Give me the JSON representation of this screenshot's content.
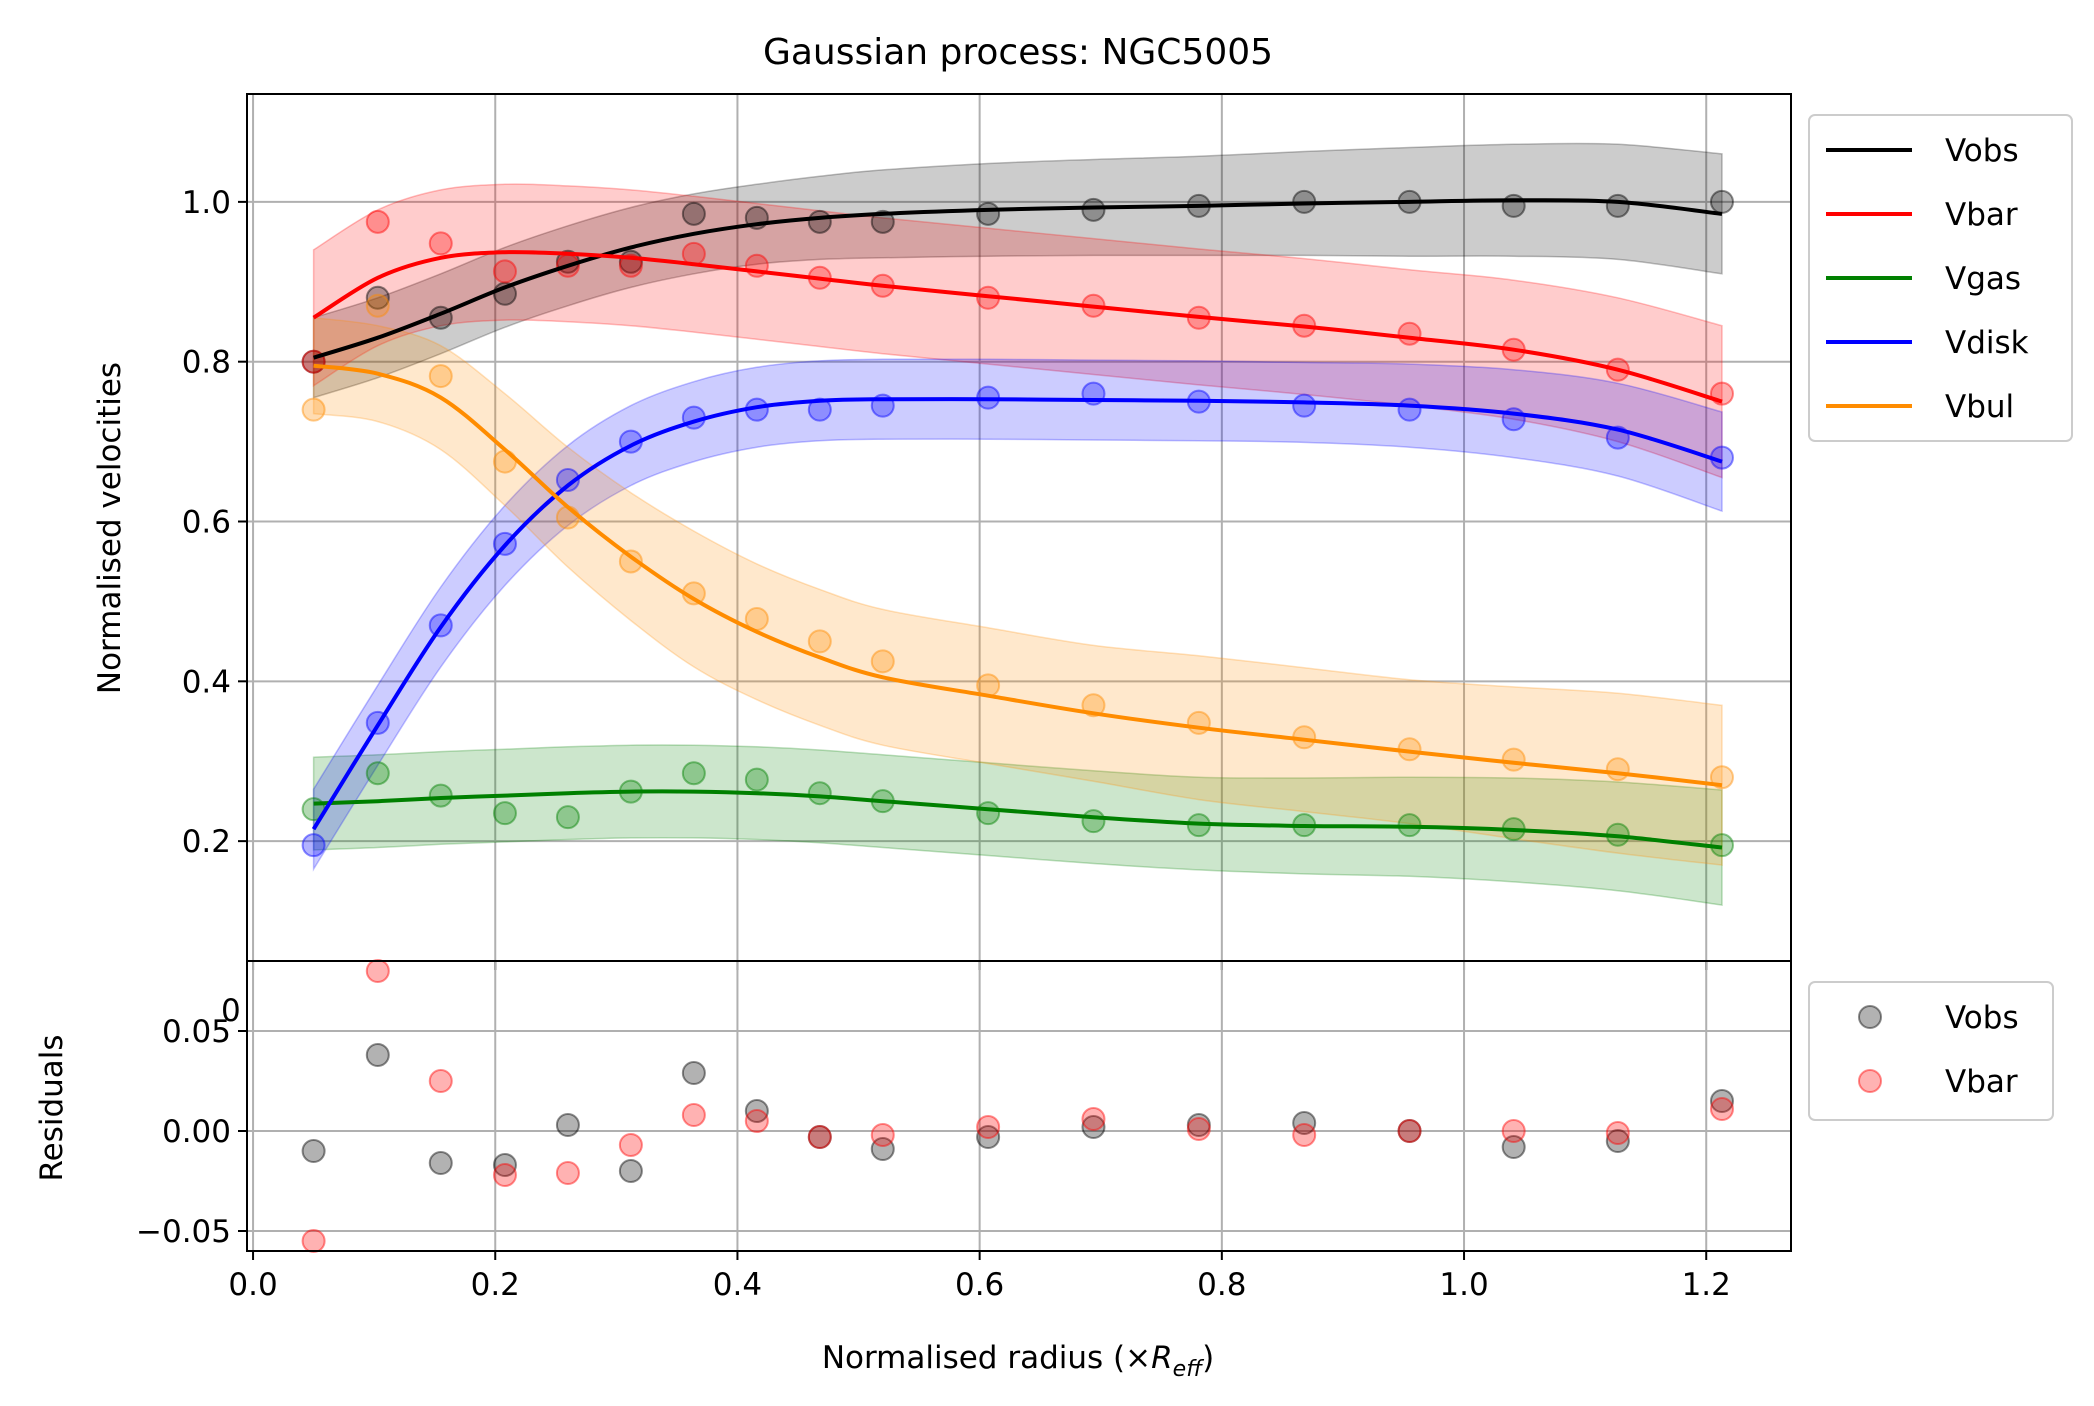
{
  "figure": {
    "title": "Gaussian process: NGC5005"
  },
  "chart_data": [
    {
      "type": "line",
      "panel": "main",
      "title": "Gaussian process: NGC5005",
      "xlabel": "",
      "ylabel": "Normalised velocities",
      "xlim": [
        -0.005,
        1.27
      ],
      "ylim": [
        0.05,
        1.135
      ],
      "y_ticks": [
        "0.2",
        "0.4",
        "0.6",
        "0.8",
        "1.0"
      ],
      "grid": true,
      "legend_position": "outside-right-top",
      "x": [
        0.05,
        0.103,
        0.155,
        0.208,
        0.26,
        0.312,
        0.364,
        0.416,
        0.468,
        0.52,
        0.607,
        0.694,
        0.781,
        0.868,
        0.955,
        1.041,
        1.127,
        1.213
      ],
      "series": [
        {
          "name": "Vobs",
          "color": "#000000",
          "data": [
            0.8,
            0.88,
            0.855,
            0.885,
            0.925,
            0.925,
            0.985,
            0.98,
            0.975,
            0.975,
            0.985,
            0.99,
            0.995,
            1.0,
            1.0,
            0.995,
            0.995,
            1.0
          ],
          "fit": [
            0.805,
            0.83,
            0.86,
            0.893,
            0.92,
            0.943,
            0.96,
            0.972,
            0.98,
            0.985,
            0.99,
            0.993,
            0.995,
            0.998,
            1.0,
            1.002,
            1.0,
            0.985
          ],
          "band_halfwidth": [
            0.05,
            0.05,
            0.05,
            0.05,
            0.05,
            0.05,
            0.05,
            0.05,
            0.052,
            0.055,
            0.058,
            0.06,
            0.062,
            0.065,
            0.068,
            0.07,
            0.072,
            0.075
          ]
        },
        {
          "name": "Vbar",
          "color": "#ff0000",
          "data": [
            0.8,
            0.975,
            0.948,
            0.913,
            0.92,
            0.92,
            0.935,
            0.92,
            0.905,
            0.895,
            0.88,
            0.87,
            0.855,
            0.845,
            0.835,
            0.815,
            0.79,
            0.76
          ],
          "fit": [
            0.855,
            0.905,
            0.93,
            0.937,
            0.935,
            0.93,
            0.922,
            0.913,
            0.904,
            0.895,
            0.882,
            0.869,
            0.856,
            0.844,
            0.83,
            0.815,
            0.79,
            0.75
          ],
          "band_halfwidth": [
            0.085,
            0.085,
            0.085,
            0.085,
            0.085,
            0.085,
            0.085,
            0.085,
            0.085,
            0.085,
            0.085,
            0.085,
            0.085,
            0.085,
            0.085,
            0.087,
            0.09,
            0.095
          ]
        },
        {
          "name": "Vgas",
          "color": "#008000",
          "data": [
            0.24,
            0.285,
            0.257,
            0.235,
            0.23,
            0.262,
            0.285,
            0.277,
            0.26,
            0.25,
            0.235,
            0.225,
            0.22,
            0.22,
            0.22,
            0.215,
            0.208,
            0.195
          ],
          "fit": [
            0.247,
            0.25,
            0.254,
            0.257,
            0.26,
            0.262,
            0.262,
            0.26,
            0.256,
            0.25,
            0.24,
            0.23,
            0.222,
            0.219,
            0.218,
            0.214,
            0.206,
            0.192
          ],
          "band_halfwidth": [
            0.058,
            0.058,
            0.058,
            0.058,
            0.058,
            0.058,
            0.058,
            0.058,
            0.058,
            0.058,
            0.058,
            0.058,
            0.058,
            0.06,
            0.062,
            0.065,
            0.068,
            0.072
          ]
        },
        {
          "name": "Vdisk",
          "color": "#0000ff",
          "data": [
            0.195,
            0.348,
            0.47,
            0.572,
            0.652,
            0.7,
            0.73,
            0.74,
            0.74,
            0.745,
            0.755,
            0.76,
            0.75,
            0.745,
            0.74,
            0.728,
            0.705,
            0.68
          ],
          "fit": [
            0.215,
            0.345,
            0.468,
            0.57,
            0.645,
            0.695,
            0.725,
            0.743,
            0.751,
            0.753,
            0.753,
            0.752,
            0.751,
            0.749,
            0.745,
            0.735,
            0.715,
            0.675
          ],
          "band_halfwidth": [
            0.05,
            0.05,
            0.05,
            0.05,
            0.05,
            0.05,
            0.05,
            0.05,
            0.05,
            0.05,
            0.05,
            0.05,
            0.05,
            0.05,
            0.052,
            0.055,
            0.058,
            0.062
          ]
        },
        {
          "name": "Vbul",
          "color": "#ff8c00",
          "data": [
            0.74,
            0.87,
            0.782,
            0.675,
            0.605,
            0.55,
            0.51,
            0.478,
            0.45,
            0.425,
            0.395,
            0.37,
            0.348,
            0.33,
            0.315,
            0.302,
            0.29,
            0.28
          ],
          "fit": [
            0.795,
            0.785,
            0.755,
            0.69,
            0.618,
            0.556,
            0.503,
            0.462,
            0.43,
            0.405,
            0.382,
            0.36,
            0.342,
            0.327,
            0.312,
            0.298,
            0.285,
            0.27
          ],
          "band_halfwidth": [
            0.06,
            0.06,
            0.065,
            0.07,
            0.075,
            0.08,
            0.085,
            0.085,
            0.085,
            0.085,
            0.085,
            0.085,
            0.09,
            0.09,
            0.09,
            0.095,
            0.1,
            0.1
          ]
        }
      ]
    },
    {
      "type": "scatter",
      "panel": "residuals",
      "xlabel": "Normalised radius (×R_eff)",
      "ylabel": "Residuals",
      "xlim": [
        -0.005,
        1.27
      ],
      "ylim": [
        -0.06,
        0.085
      ],
      "x_ticks": [
        "0.0",
        "0.2",
        "0.4",
        "0.6",
        "0.8",
        "1.0",
        "1.2"
      ],
      "y_ticks": [
        "−0.05",
        "0.00",
        "0.05"
      ],
      "stray_tick_label": "0",
      "grid": true,
      "legend_position": "outside-right-top",
      "x": [
        0.05,
        0.103,
        0.155,
        0.208,
        0.26,
        0.312,
        0.364,
        0.416,
        0.468,
        0.52,
        0.607,
        0.694,
        0.781,
        0.868,
        0.955,
        1.041,
        1.127,
        1.213
      ],
      "series": [
        {
          "name": "Vobs",
          "color": "#000000",
          "values": [
            -0.01,
            0.038,
            -0.016,
            -0.017,
            0.003,
            -0.02,
            0.029,
            0.01,
            -0.003,
            -0.009,
            -0.003,
            0.002,
            0.003,
            0.004,
            0.0,
            -0.008,
            -0.005,
            0.015
          ]
        },
        {
          "name": "Vbar",
          "color": "#ff0000",
          "values": [
            -0.055,
            0.08,
            0.025,
            -0.022,
            -0.021,
            -0.007,
            0.008,
            0.005,
            -0.003,
            -0.002,
            0.002,
            0.006,
            0.001,
            -0.002,
            0.0,
            0.0,
            -0.001,
            0.011
          ]
        }
      ]
    }
  ]
}
